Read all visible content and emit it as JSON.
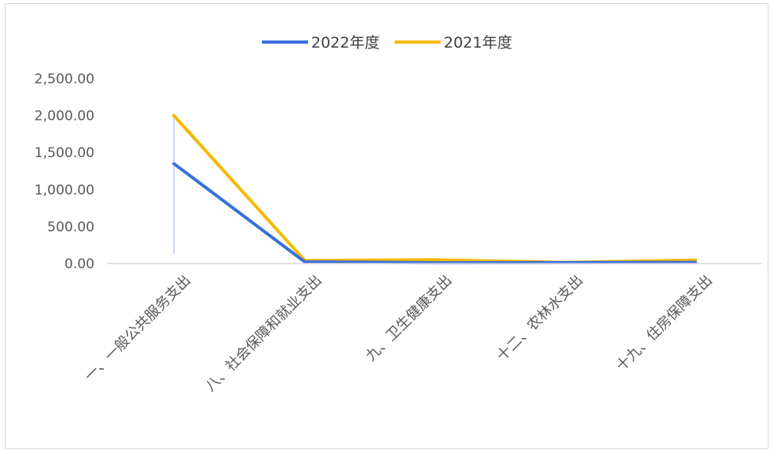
{
  "chart_data": {
    "type": "line",
    "categories": [
      "一、一般公共服务支出",
      "八、社会保障和就业支出",
      "九、卫生健康支出",
      "十二、农林水支出",
      "十九、住房保障支出"
    ],
    "series": [
      {
        "name": "2022年度",
        "values": [
          1350,
          22,
          10,
          12,
          15
        ],
        "color": "#3a6fe0"
      },
      {
        "name": "2021年度",
        "values": [
          2000,
          40,
          50,
          15,
          45
        ],
        "color": "#f5b800"
      }
    ],
    "yticks": [
      "0.00",
      "500.00",
      "1,000.00",
      "1,500.00",
      "2,000.00",
      "2,500.00"
    ],
    "ylim": [
      0,
      2500
    ],
    "legend": "top-center",
    "grid": false,
    "axis_color": "#d9d9d9",
    "tick_color": "#595959"
  }
}
